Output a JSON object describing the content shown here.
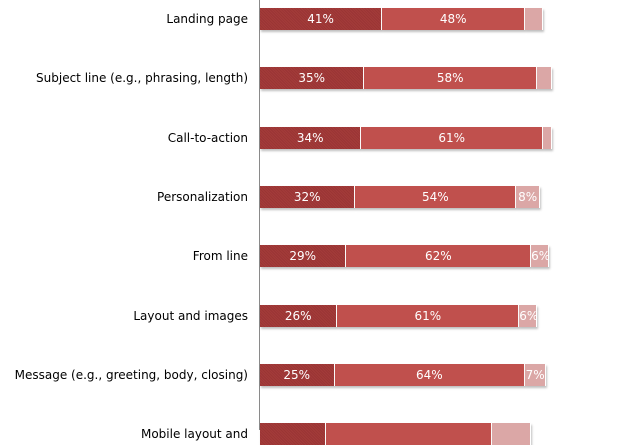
{
  "chart_data": {
    "type": "bar",
    "orientation": "horizontal",
    "stacked": true,
    "categories": [
      "Landing page",
      "Subject line (e.g., phrasing, length)",
      "Call-to-action",
      "Personalization",
      "From line",
      "Layout and images",
      "Message (e.g., greeting, body, closing)",
      "Mobile layout and"
    ],
    "series": [
      {
        "name": "segment-1",
        "color": "#a33b3a",
        "values": [
          41,
          35,
          34,
          32,
          29,
          26,
          25,
          22
        ],
        "labels": [
          "41%",
          "35%",
          "34%",
          "32%",
          "29%",
          "26%",
          "25%",
          ""
        ]
      },
      {
        "name": "segment-2",
        "color": "#c0504d",
        "values": [
          48,
          58,
          61,
          54,
          62,
          61,
          64,
          56
        ],
        "labels": [
          "48%",
          "58%",
          "61%",
          "54%",
          "62%",
          "61%",
          "64%",
          ""
        ]
      },
      {
        "name": "segment-3",
        "color": "#dba7a6",
        "values": [
          6,
          5,
          3,
          8,
          6,
          6,
          7,
          13
        ],
        "labels": [
          "",
          "",
          "",
          "8%",
          "6%",
          "6%",
          "7%",
          ""
        ]
      }
    ],
    "xlim": [
      0,
      100
    ],
    "grid": false,
    "legend": "none"
  }
}
